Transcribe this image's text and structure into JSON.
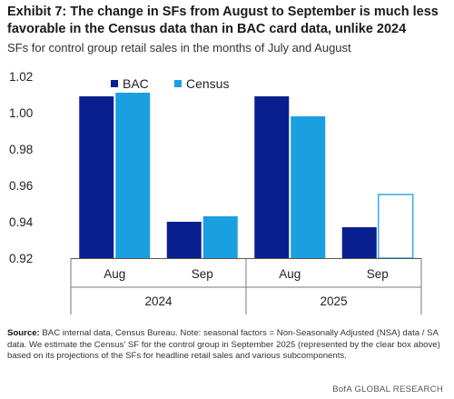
{
  "header": {
    "title": "Exhibit 7: The change in SFs from August to September is much less favorable in the Census data than in BAC card data, unlike 2024",
    "subtitle": "SFs for control group retail sales in the months of July and August"
  },
  "footer": {
    "source_label": "Source:",
    "source_text": "BAC internal data, Census Bureau. Note: seasonal factors = Non-Seasonally Adjusted (NSA) data / SA data. We estimate the Census' SF for the control group in September 2025 (represented by the clear box above) based on its projections of the SFs for headline retail sales and various subcomponents.",
    "brand": "BofA GLOBAL RESEARCH"
  },
  "chart_data": {
    "type": "bar",
    "categories": [
      "Aug",
      "Sep",
      "Aug",
      "Sep"
    ],
    "groups": [
      {
        "label": "2024",
        "categories": [
          "Aug",
          "Sep"
        ]
      },
      {
        "label": "2025",
        "categories": [
          "Aug",
          "Sep"
        ]
      }
    ],
    "series": [
      {
        "name": "BAC",
        "color": "#0a1f8f",
        "values": [
          1.009,
          0.94,
          1.009,
          0.937
        ]
      },
      {
        "name": "Census",
        "color": "#1a9fe0",
        "values": [
          1.011,
          0.943,
          0.998,
          0.955
        ],
        "hollow": [
          false,
          false,
          false,
          true
        ]
      }
    ],
    "ylim": [
      0.92,
      1.02
    ],
    "yticks": [
      "0.92",
      "0.94",
      "0.96",
      "0.98",
      "1.00",
      "1.02"
    ],
    "legend_position": "top-left",
    "grid": false
  }
}
